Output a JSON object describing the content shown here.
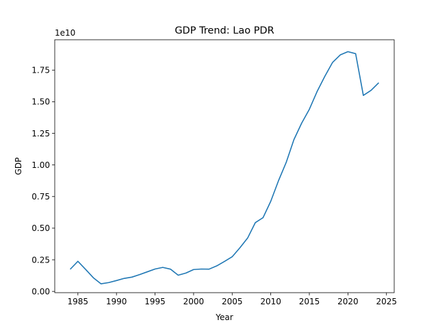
{
  "chart_data": {
    "type": "line",
    "title": "GDP Trend: Lao PDR",
    "xlabel": "Year",
    "ylabel": "GDP",
    "offset_label": "1e10",
    "xlim": [
      1982.0,
      2026.0
    ],
    "ylim": [
      -0.1,
      19.9
    ],
    "x_ticks": [
      1985,
      1990,
      1995,
      2000,
      2005,
      2010,
      2015,
      2020,
      2025
    ],
    "y_ticks": [
      0.0,
      2.5,
      5.0,
      7.5,
      10.0,
      12.5,
      15.0,
      17.5
    ],
    "y_tick_labels": [
      "0.00",
      "0.25",
      "0.50",
      "0.75",
      "1.00",
      "1.25",
      "1.50",
      "1.75"
    ],
    "grid": false,
    "legend": "none",
    "series": [
      {
        "color": "#1f77b4",
        "x": [
          1984,
          1985,
          1986,
          1987,
          1988,
          1989,
          1990,
          1991,
          1992,
          1993,
          1994,
          1995,
          1996,
          1997,
          1998,
          1999,
          2000,
          2001,
          2002,
          2003,
          2004,
          2005,
          2006,
          2007,
          2008,
          2009,
          2010,
          2011,
          2012,
          2013,
          2014,
          2015,
          2016,
          2017,
          2018,
          2019,
          2020,
          2021,
          2022,
          2023,
          2024
        ],
        "y": [
          1.75,
          2.38,
          1.74,
          1.08,
          0.6,
          0.7,
          0.86,
          1.03,
          1.13,
          1.33,
          1.55,
          1.77,
          1.9,
          1.76,
          1.28,
          1.45,
          1.73,
          1.77,
          1.76,
          2.02,
          2.37,
          2.74,
          3.45,
          4.22,
          5.44,
          5.83,
          7.13,
          8.75,
          10.2,
          12.0,
          13.3,
          14.4,
          15.8,
          17.0,
          18.1,
          18.7,
          18.96,
          18.8,
          15.5,
          15.9,
          16.5
        ]
      }
    ]
  }
}
